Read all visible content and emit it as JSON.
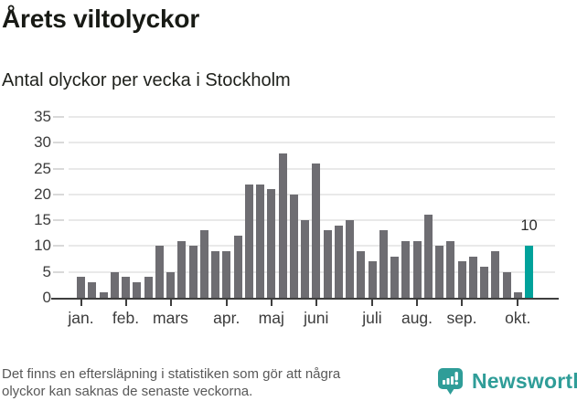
{
  "header": {
    "title": "Årets viltolyckor",
    "subtitle": "Antal olyckor per vecka i Stockholm"
  },
  "footer": {
    "lines": {
      "0": "Det finns en eftersläpning i statistiken som gör att några",
      "1": "olyckor kan saknas de senaste veckorna."
    }
  },
  "branding": {
    "name": "Newsworthy",
    "color": "#2f9d98",
    "icon": "bar-chart-pin-icon"
  },
  "chart_data": {
    "type": "bar",
    "title": "Årets viltolyckor",
    "subtitle": "Antal olyckor per vecka i Stockholm",
    "x_unit": "vecka (week number 1–41)",
    "values": [
      4,
      3,
      1,
      5,
      4,
      3,
      4,
      10,
      5,
      11,
      10,
      13,
      9,
      9,
      12,
      22,
      22,
      21,
      28,
      20,
      15,
      26,
      13,
      14,
      15,
      9,
      7,
      13,
      8,
      11,
      11,
      16,
      10,
      11,
      7,
      8,
      6,
      9,
      5,
      1,
      10
    ],
    "highlight": {
      "index": 40,
      "value": 10,
      "label": "10"
    },
    "colors": {
      "bar": "#6e6d72",
      "highlight_bar": "#00a29b",
      "gridline": "#e9e9e9",
      "axis": "#3e3e3e",
      "tick_label": "#3c3c3c"
    },
    "ylim": [
      0,
      35
    ],
    "yticks": [
      0,
      5,
      10,
      15,
      20,
      25,
      30,
      35
    ],
    "month_ticks": [
      {
        "label": "jan.",
        "week": 1
      },
      {
        "label": "feb.",
        "week": 5
      },
      {
        "label": "mars",
        "week": 9
      },
      {
        "label": "apr.",
        "week": 14
      },
      {
        "label": "maj",
        "week": 18
      },
      {
        "label": "juni",
        "week": 22
      },
      {
        "label": "juli",
        "week": 27
      },
      {
        "label": "aug.",
        "week": 31
      },
      {
        "label": "sep.",
        "week": 35
      },
      {
        "label": "okt.",
        "week": 40
      }
    ],
    "grid": true,
    "legend": "none"
  }
}
